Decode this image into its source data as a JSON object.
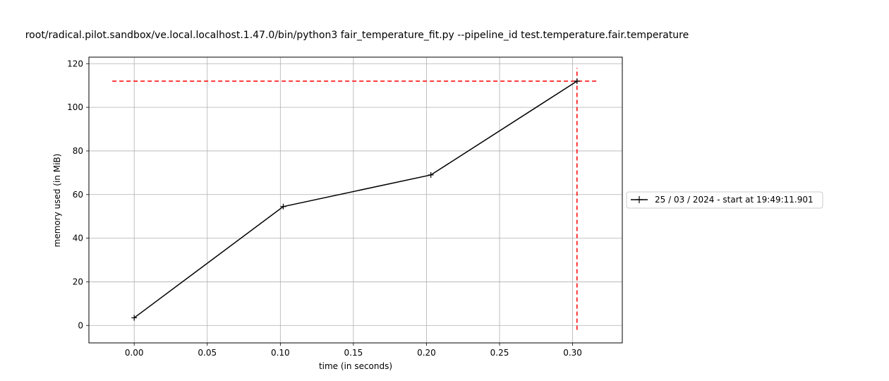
{
  "chart_data": {
    "type": "line",
    "title": "root/radical.pilot.sandbox/ve.local.localhost.1.47.0/bin/python3 fair_temperature_fit.py --pipeline_id test.temperature.fair.temperature",
    "xlabel": "time (in seconds)",
    "ylabel": "memory used (in MiB)",
    "xlim": [
      -0.031,
      0.334
    ],
    "ylim": [
      -8,
      123
    ],
    "x_ticks": [
      0.0,
      0.05,
      0.1,
      0.15,
      0.2,
      0.25,
      0.3
    ],
    "x_tick_labels": [
      "0.00",
      "0.05",
      "0.10",
      "0.15",
      "0.20",
      "0.25",
      "0.30"
    ],
    "y_ticks": [
      0,
      20,
      40,
      60,
      80,
      100,
      120
    ],
    "y_tick_labels": [
      "0",
      "20",
      "40",
      "60",
      "80",
      "100",
      "120"
    ],
    "grid": true,
    "legend_placement": "outside right, center",
    "series": [
      {
        "name": "25 / 03 / 2024 - start at 19:49:11.901",
        "color": "#000000",
        "marker": "+",
        "x": [
          0.0,
          0.102,
          0.203,
          0.303
        ],
        "y": [
          3.5,
          54.5,
          69,
          112
        ]
      }
    ],
    "reference_lines": [
      {
        "orientation": "horizontal",
        "value": 112,
        "from": -0.015,
        "to": 0.318,
        "color": "#ff0000",
        "style": "dashed"
      },
      {
        "orientation": "vertical",
        "value": 0.303,
        "from": -2,
        "to": 118,
        "color": "#ff0000",
        "style": "dashed"
      }
    ]
  }
}
